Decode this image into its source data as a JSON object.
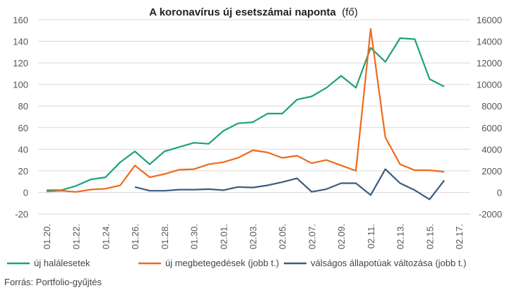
{
  "chart_data": {
    "type": "line",
    "title": "A koronavírus új esetszámai naponta",
    "title_unit": "(fő)",
    "source": "Forrás: Portfolio-gyűjtés",
    "x_tick_labels": [
      "01.20.",
      "01.22.",
      "01.24.",
      "01.26.",
      "01.28.",
      "01.30.",
      "02.01.",
      "02.03.",
      "02.05.",
      "02.07.",
      "02.09.",
      "02.11.",
      "02.13.",
      "02.15.",
      "02.17."
    ],
    "x": [
      "01.20.",
      "01.21.",
      "01.22.",
      "01.23.",
      "01.24.",
      "01.25.",
      "01.26.",
      "01.27.",
      "01.28.",
      "01.29.",
      "01.30.",
      "01.31.",
      "02.01.",
      "02.02.",
      "02.03.",
      "02.04.",
      "02.05.",
      "02.06.",
      "02.07.",
      "02.08.",
      "02.09.",
      "02.10.",
      "02.11.",
      "02.12.",
      "02.13.",
      "02.14.",
      "02.15.",
      "02.16.",
      "02.17."
    ],
    "y_left": {
      "min": -20,
      "max": 160,
      "step": 20,
      "ticks": [
        -20,
        0,
        20,
        40,
        60,
        80,
        100,
        120,
        140,
        160
      ]
    },
    "y_right": {
      "min": -2000,
      "max": 16000,
      "step": 2000,
      "ticks": [
        -2000,
        0,
        2000,
        4000,
        6000,
        8000,
        10000,
        12000,
        14000,
        16000
      ]
    },
    "grid": "horizontal",
    "legend_position": "bottom",
    "series": [
      {
        "name": "új halálesetek",
        "axis": "left",
        "color": "#1aa37a",
        "values": [
          2,
          2,
          6,
          12,
          14,
          28,
          38,
          26,
          38,
          42,
          46,
          45,
          57,
          64,
          65,
          73,
          73,
          86,
          89,
          97,
          108,
          97,
          134,
          121,
          143,
          142,
          105,
          98,
          null
        ]
      },
      {
        "name": "új megbetegedések (jobb t.)",
        "axis": "right",
        "color": "#ee6a1e",
        "values": [
          77,
          150,
          40,
          260,
          340,
          650,
          2500,
          1400,
          1700,
          2100,
          2150,
          2600,
          2800,
          3200,
          3900,
          3700,
          3200,
          3400,
          2700,
          3000,
          2500,
          2000,
          15150,
          5100,
          2600,
          2050,
          2050,
          1900,
          null
        ]
      },
      {
        "name": "válságos állapotúak változása (jobb t.)",
        "axis": "right",
        "color": "#3d5c80",
        "values": [
          null,
          null,
          null,
          null,
          null,
          null,
          500,
          150,
          150,
          250,
          250,
          300,
          200,
          500,
          450,
          650,
          950,
          1300,
          50,
          300,
          850,
          850,
          -250,
          2150,
          850,
          200,
          -650,
          1100,
          null
        ]
      }
    ]
  }
}
